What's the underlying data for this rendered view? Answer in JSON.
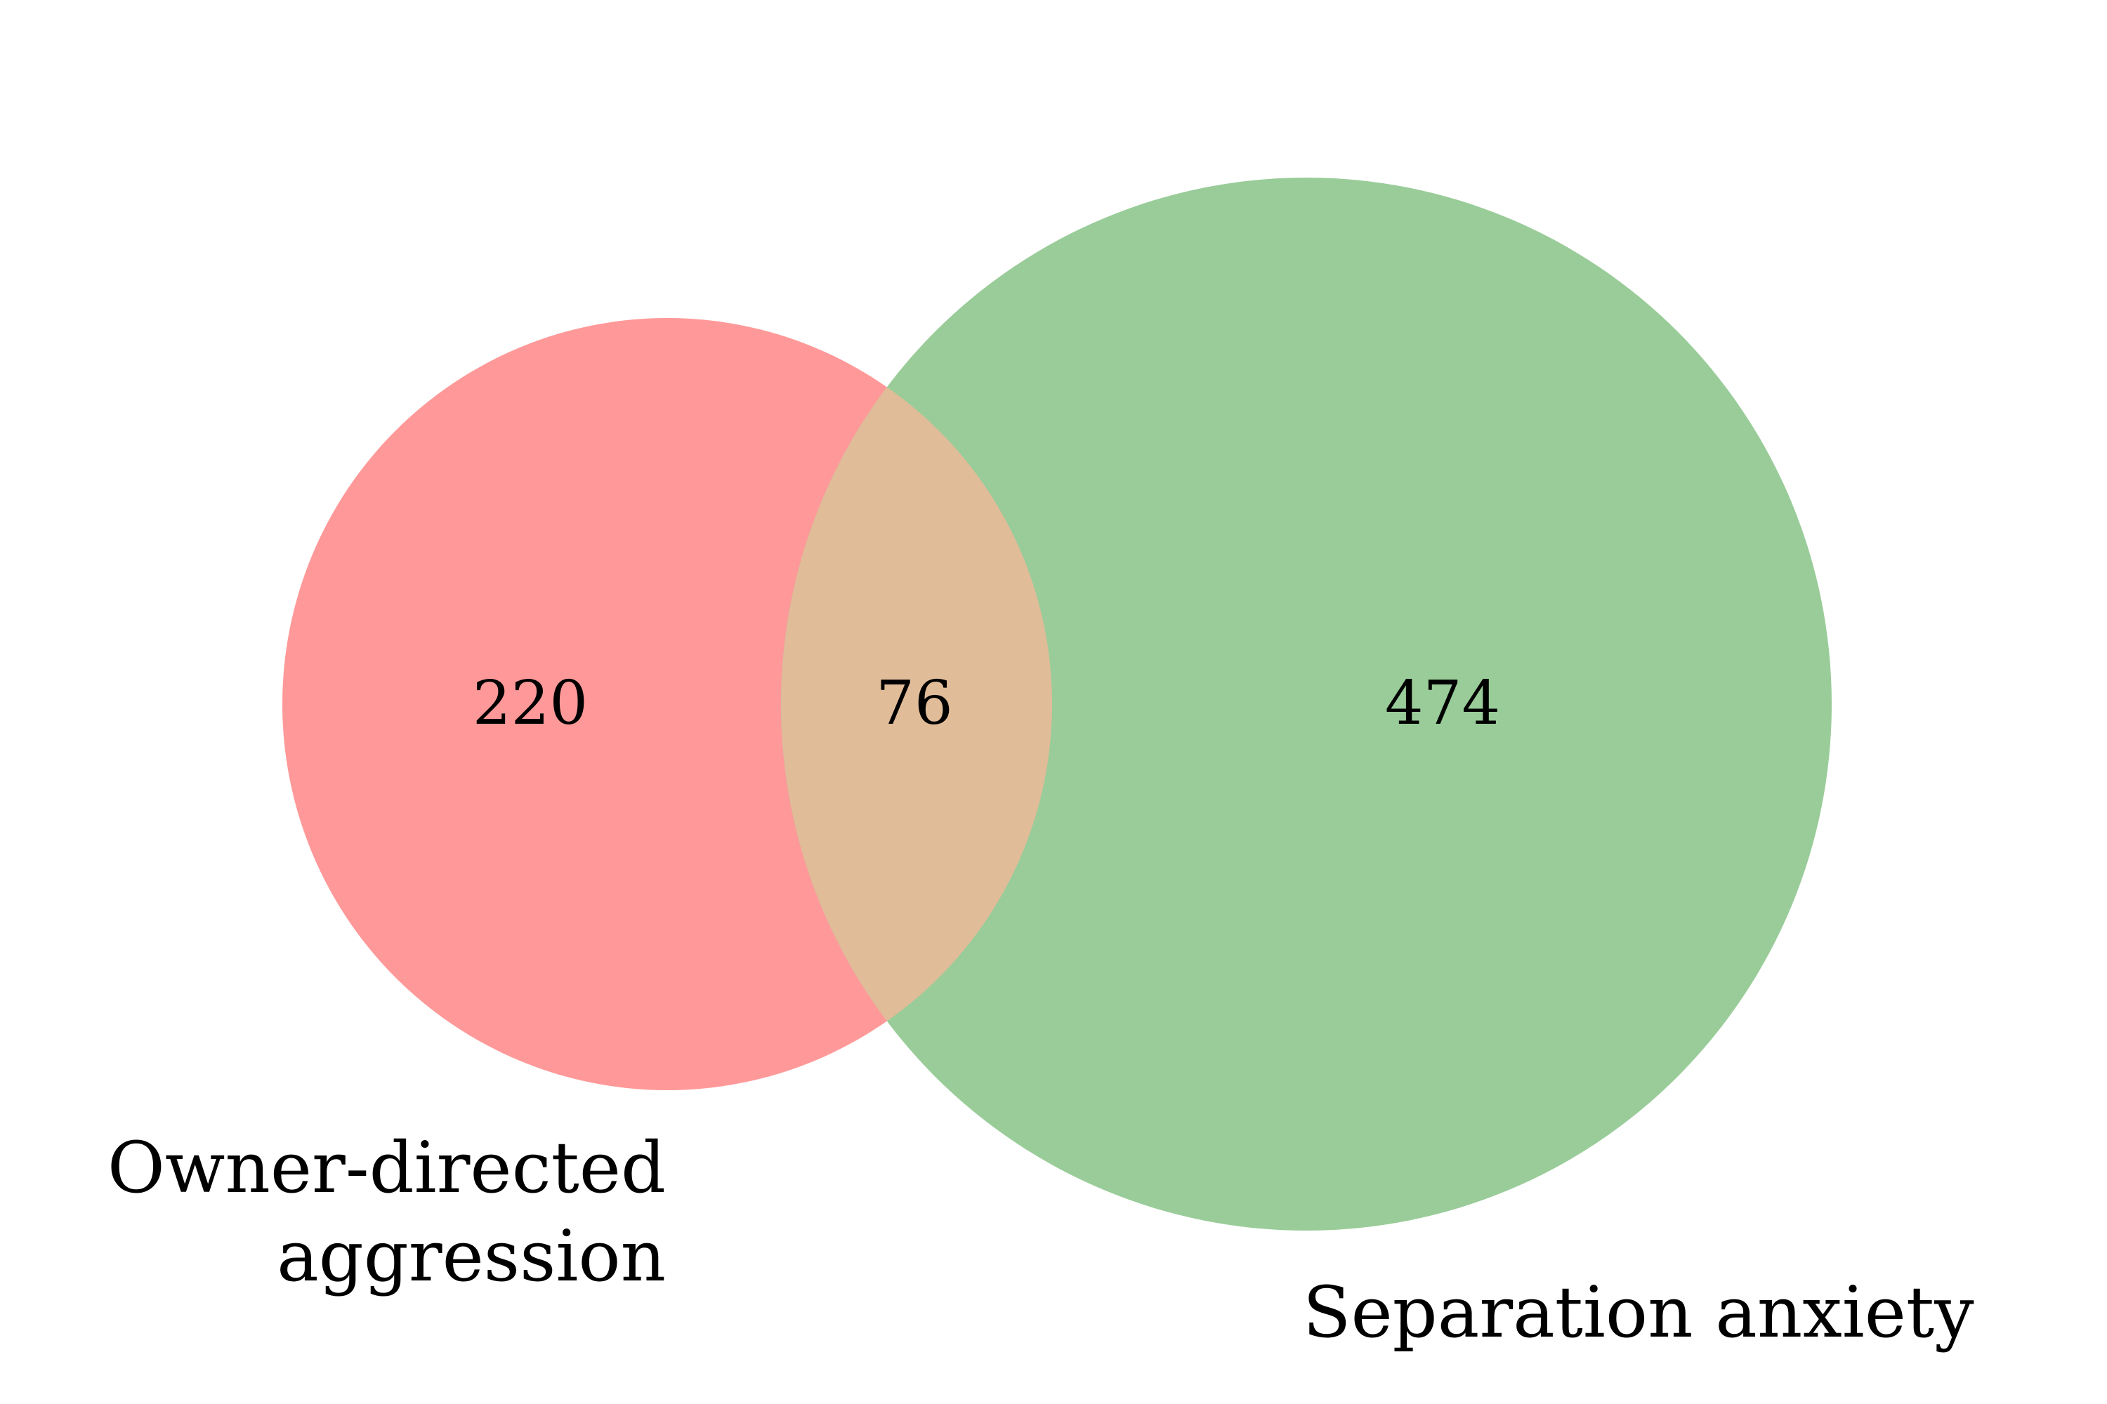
{
  "venn": {
    "sets": [
      {
        "name": "Owner-directed aggression",
        "label_lines": [
          "Owner-directed",
          "aggression"
        ],
        "color": "#ff9999"
      },
      {
        "name": "Separation anxiety",
        "label_lines": [
          "Separation anxiety"
        ],
        "color": "#99cc99"
      }
    ],
    "overlap_color": "#e0bc99",
    "regions": {
      "left_only": "220",
      "intersection": "76",
      "right_only": "474"
    }
  }
}
